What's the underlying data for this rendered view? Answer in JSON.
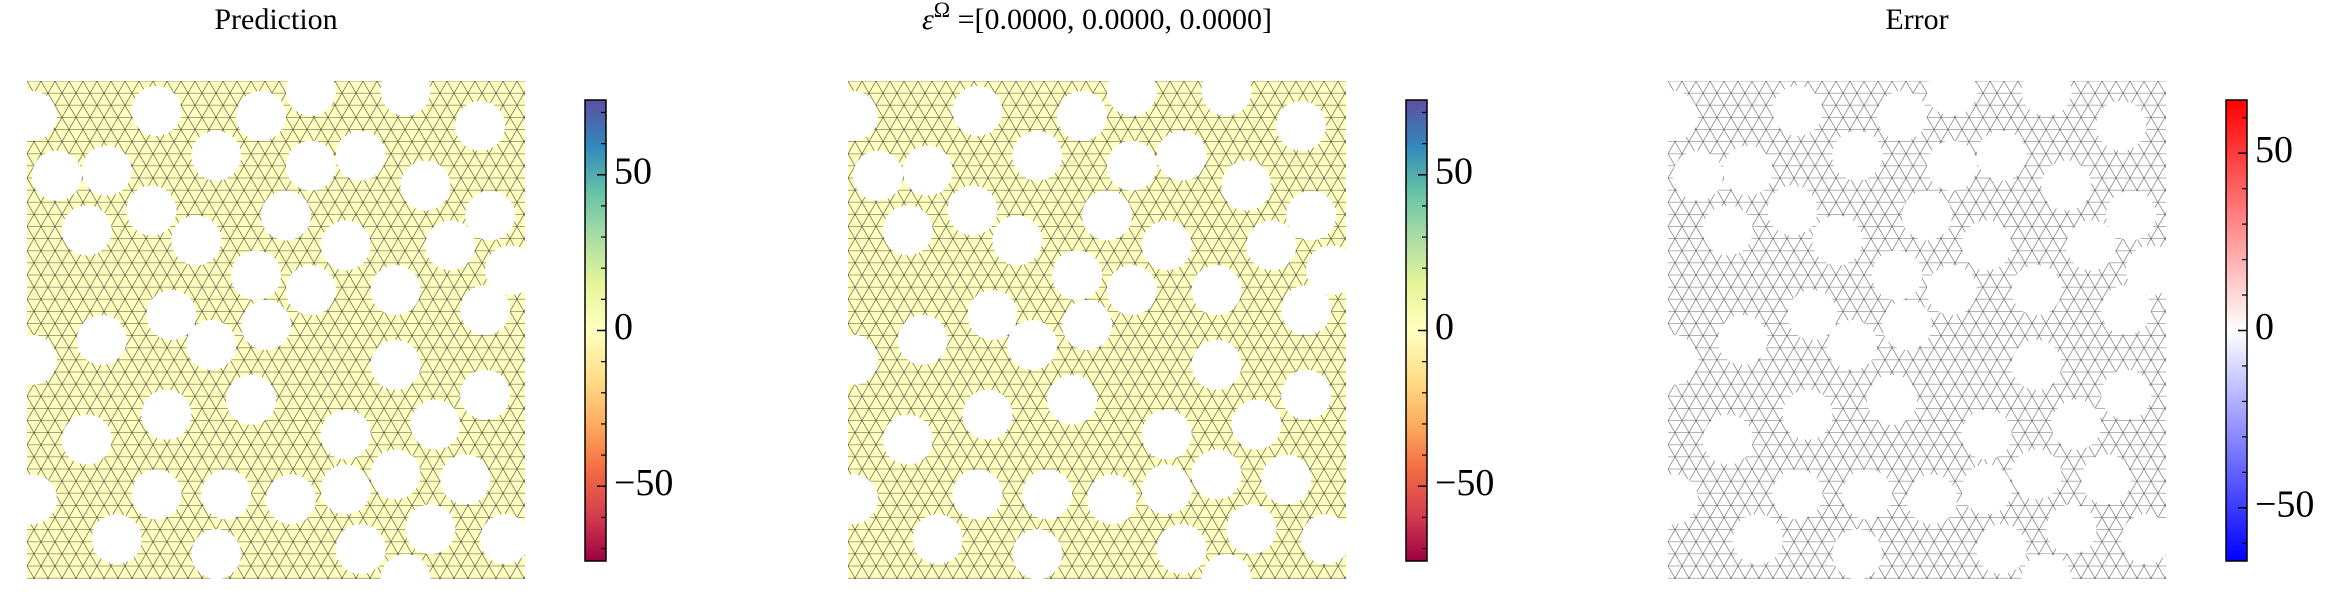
{
  "chart_data": [
    {
      "type": "mesh",
      "title": "Prediction",
      "field_value": 0,
      "colormap": [
        "#9e0142",
        "#d53e4f",
        "#f46d43",
        "#fdae61",
        "#fee08b",
        "#ffffbf",
        "#e6f598",
        "#abdda4",
        "#66c2a5",
        "#3288bd",
        "#5e4fa2"
      ],
      "clim": [
        -74,
        74
      ],
      "cbar_ticks": [
        {
          "value": -50,
          "label": "−50"
        },
        0,
        50
      ],
      "cbar_minor_ticks": [
        -70,
        -60,
        -40,
        -30,
        -20,
        -10,
        10,
        20,
        30,
        40,
        60,
        70
      ],
      "edge_color": "#4d4d3a"
    },
    {
      "type": "mesh",
      "title": {
        "symbol": "ε",
        "superscript": "Ω",
        "text": " =[0.0000, 0.0000, 0.0000]"
      },
      "field_value": 0,
      "colormap": [
        "#9e0142",
        "#d53e4f",
        "#f46d43",
        "#fdae61",
        "#fee08b",
        "#ffffbf",
        "#e6f598",
        "#abdda4",
        "#66c2a5",
        "#3288bd",
        "#5e4fa2"
      ],
      "clim": [
        -74,
        74
      ],
      "cbar_ticks": [
        {
          "value": -50,
          "label": "−50"
        },
        0,
        50
      ],
      "cbar_minor_ticks": [
        -70,
        -60,
        -40,
        -30,
        -20,
        -10,
        10,
        20,
        30,
        40,
        60,
        70
      ],
      "edge_color": "#4d4d3a"
    },
    {
      "type": "mesh",
      "title": "Error",
      "field_value": 0,
      "colormap": [
        "#0000ff",
        "#ffffff",
        "#ff0000"
      ],
      "clim": [
        -65,
        65
      ],
      "cbar_ticks": [
        {
          "value": -50,
          "label": "−50"
        },
        0,
        50
      ],
      "cbar_minor_ticks": [
        -60,
        -40,
        -30,
        -20,
        -10,
        10,
        20,
        30,
        40,
        60
      ],
      "edge_color": "#666666"
    }
  ]
}
